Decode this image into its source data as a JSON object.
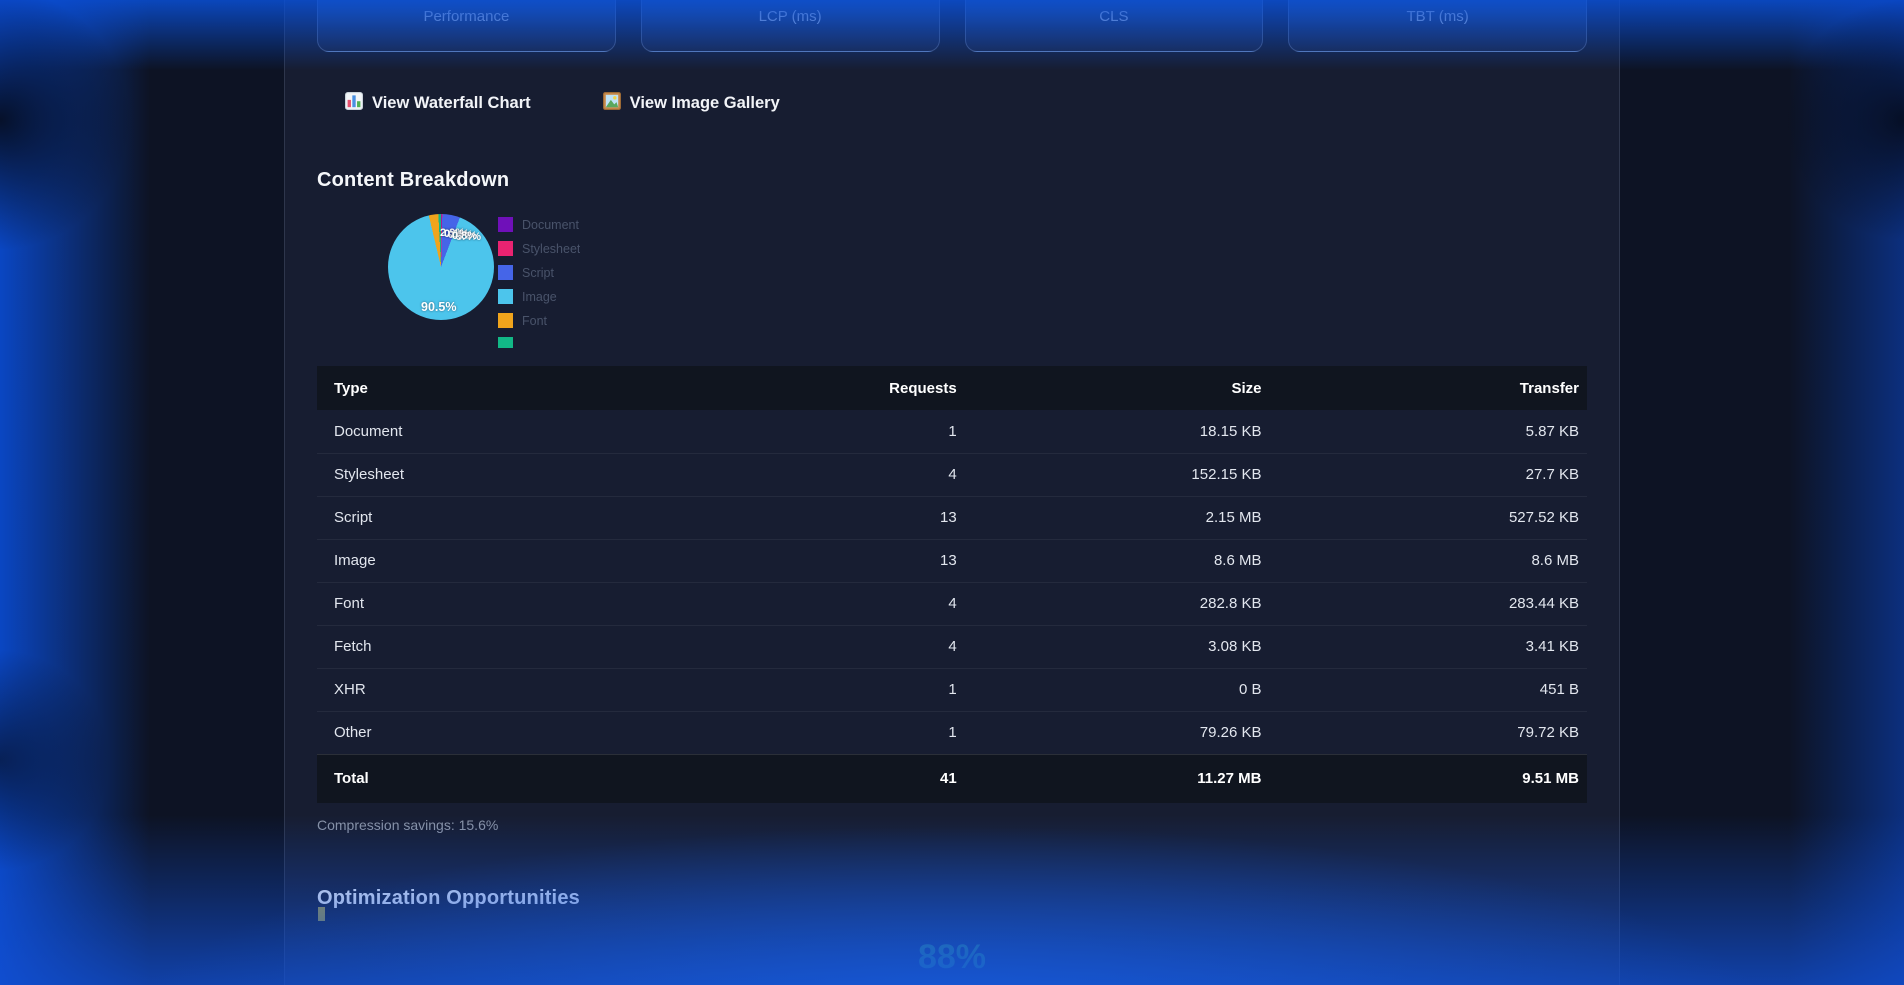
{
  "metric_cards": [
    {
      "label": "Performance"
    },
    {
      "label": "LCP (ms)"
    },
    {
      "label": "CLS"
    },
    {
      "label": "TBT (ms)"
    }
  ],
  "actions": {
    "waterfall": {
      "icon": "bar-chart-icon",
      "label": "View Waterfall Chart"
    },
    "gallery": {
      "icon": "image-gallery-icon",
      "label": "View Image Gallery"
    }
  },
  "content_breakdown": {
    "heading": "Content Breakdown",
    "chart_data": {
      "type": "pie",
      "labels": [
        "Document",
        "Stylesheet",
        "Script",
        "Image",
        "Font",
        ""
      ],
      "values_percent": [
        0.1,
        0.3,
        5.4,
        90.5,
        2.9,
        0.8
      ],
      "colors": [
        "#6f10b9",
        "#ea2371",
        "#4565e8",
        "#4cc5ec",
        "#f0a41c",
        "#12b886"
      ],
      "main_slice_label": "90.5%",
      "overlapping_labels": [
        "2.9%",
        "0.3%",
        "5.4%",
        "0.1%",
        "0.8%"
      ],
      "legend_position": "right"
    },
    "table": {
      "headers": [
        "Type",
        "Requests",
        "Size",
        "Transfer"
      ],
      "rows": [
        {
          "type": "Document",
          "requests": "1",
          "size": "18.15 KB",
          "transfer": "5.87 KB"
        },
        {
          "type": "Stylesheet",
          "requests": "4",
          "size": "152.15 KB",
          "transfer": "27.7 KB"
        },
        {
          "type": "Script",
          "requests": "13",
          "size": "2.15 MB",
          "transfer": "527.52 KB"
        },
        {
          "type": "Image",
          "requests": "13",
          "size": "8.6 MB",
          "transfer": "8.6 MB"
        },
        {
          "type": "Font",
          "requests": "4",
          "size": "282.8 KB",
          "transfer": "283.44 KB"
        },
        {
          "type": "Fetch",
          "requests": "4",
          "size": "3.08 KB",
          "transfer": "3.41 KB"
        },
        {
          "type": "XHR",
          "requests": "1",
          "size": "0 B",
          "transfer": "451 B"
        },
        {
          "type": "Other",
          "requests": "1",
          "size": "79.26 KB",
          "transfer": "79.72 KB"
        }
      ],
      "total": {
        "type": "Total",
        "requests": "41",
        "size": "11.27 MB",
        "transfer": "9.51 MB"
      }
    },
    "compression_note": "Compression savings: 15.6%"
  },
  "optimization": {
    "heading": "Optimization Opportunities",
    "score": "88%",
    "score_color": "#3fa64b"
  }
}
